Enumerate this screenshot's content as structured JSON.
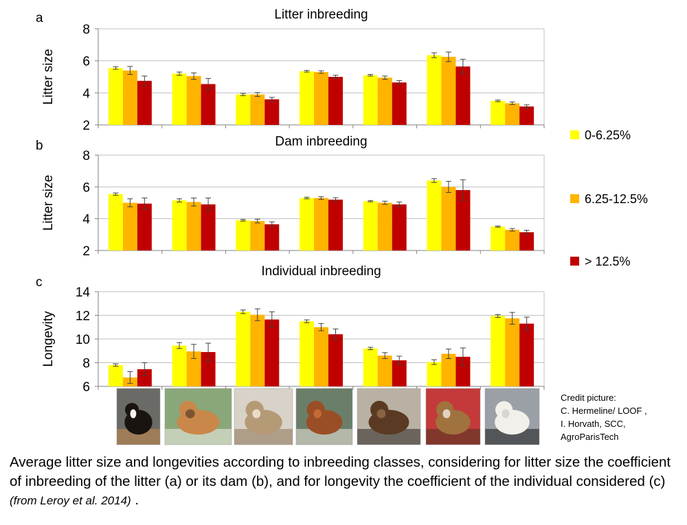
{
  "chart_data": [
    {
      "type": "bar",
      "panel_letter": "a",
      "title": "Litter inbreeding",
      "ylabel": "Litter size",
      "ylim": [
        2,
        8
      ],
      "yticks": [
        2,
        4,
        6,
        8
      ],
      "series": [
        {
          "name": "0-6.25%",
          "color": "#ffff00",
          "values": [
            5.55,
            5.2,
            3.9,
            5.35,
            5.1,
            6.35,
            3.5
          ],
          "errors": [
            0.08,
            0.1,
            0.07,
            0.05,
            0.05,
            0.15,
            0.05
          ]
        },
        {
          "name": "6.25-12.5%",
          "color": "#ffb400",
          "values": [
            5.4,
            5.05,
            3.9,
            5.3,
            4.95,
            6.25,
            3.35
          ],
          "errors": [
            0.25,
            0.2,
            0.12,
            0.08,
            0.1,
            0.3,
            0.08
          ]
        },
        {
          "name": "> 12.5%",
          "color": "#c00000",
          "values": [
            4.75,
            4.55,
            3.6,
            5.0,
            4.65,
            5.65,
            3.15
          ],
          "errors": [
            0.3,
            0.35,
            0.12,
            0.1,
            0.12,
            0.45,
            0.1
          ]
        }
      ]
    },
    {
      "type": "bar",
      "panel_letter": "b",
      "title": "Dam inbreeding",
      "ylabel": "Litter size",
      "ylim": [
        2,
        8
      ],
      "yticks": [
        2,
        4,
        6,
        8
      ],
      "series": [
        {
          "name": "0-6.25%",
          "color": "#ffff00",
          "values": [
            5.55,
            5.15,
            3.9,
            5.3,
            5.1,
            6.4,
            3.5
          ],
          "errors": [
            0.07,
            0.1,
            0.05,
            0.05,
            0.04,
            0.12,
            0.04
          ]
        },
        {
          "name": "6.25-12.5%",
          "color": "#ffb400",
          "values": [
            5.0,
            5.05,
            3.85,
            5.3,
            5.0,
            6.0,
            3.3
          ],
          "errors": [
            0.25,
            0.25,
            0.12,
            0.08,
            0.1,
            0.35,
            0.08
          ]
        },
        {
          "name": "> 12.5%",
          "color": "#c00000",
          "values": [
            4.95,
            4.9,
            3.65,
            5.2,
            4.9,
            5.8,
            3.15
          ],
          "errors": [
            0.35,
            0.4,
            0.15,
            0.12,
            0.15,
            0.65,
            0.12
          ]
        }
      ]
    },
    {
      "type": "bar",
      "panel_letter": "c",
      "title": "Individual inbreeding",
      "ylabel": "Longevity",
      "ylim": [
        6,
        14
      ],
      "yticks": [
        6,
        8,
        10,
        12,
        14
      ],
      "series": [
        {
          "name": "0-6.25%",
          "color": "#ffff00",
          "values": [
            7.8,
            9.45,
            12.3,
            11.5,
            9.2,
            8.05,
            11.95
          ],
          "errors": [
            0.1,
            0.25,
            0.15,
            0.12,
            0.1,
            0.2,
            0.12
          ]
        },
        {
          "name": "6.25-12.5%",
          "color": "#ffb400",
          "values": [
            6.75,
            8.95,
            12.05,
            11.0,
            8.6,
            8.75,
            11.75
          ],
          "errors": [
            0.5,
            0.6,
            0.5,
            0.3,
            0.25,
            0.4,
            0.5
          ]
        },
        {
          "name": "> 12.5%",
          "color": "#c00000",
          "values": [
            7.45,
            8.9,
            11.65,
            10.4,
            8.2,
            8.5,
            11.3
          ],
          "errors": [
            0.55,
            0.75,
            0.65,
            0.45,
            0.35,
            0.75,
            0.55
          ]
        }
      ]
    }
  ],
  "legend": [
    {
      "label": "0-6.25%",
      "color": "#ffff00"
    },
    {
      "label": "6.25-12.5%",
      "color": "#ffb400"
    },
    {
      "label": "> 12.5%",
      "color": "#c00000"
    }
  ],
  "breed_photos": [
    {
      "name": "bernese-mountain-dog"
    },
    {
      "name": "basset-hound"
    },
    {
      "name": "cairn-terrier"
    },
    {
      "name": "cocker-spaniel"
    },
    {
      "name": "cat"
    },
    {
      "name": "leonberger"
    },
    {
      "name": "west-highland-white-terrier"
    }
  ],
  "credit": {
    "line1": "Credit picture:",
    "line2": "C. Hermeline/ LOOF ,",
    "line3": "I. Horvath, SCC,",
    "line4": "AgroParisTech"
  },
  "caption": {
    "text": "Average litter size and longevities according to inbreeding classes, considering for litter size the coefficient of inbreeding of the litter (a) or its dam (b), and for longevity the coefficient of the individual considered (c)",
    "source": "(from Leroy et al. 2014)",
    "end": " ."
  }
}
